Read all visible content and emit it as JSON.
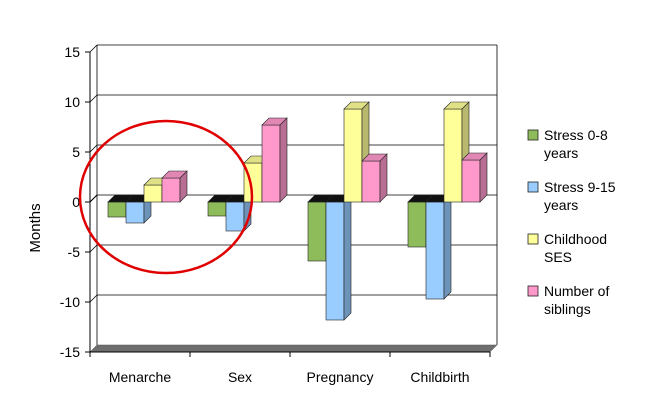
{
  "chart_data": {
    "type": "bar",
    "title": "",
    "xlabel": "",
    "ylabel": "Months",
    "ylim": [
      -15,
      15
    ],
    "yticks": [
      -15,
      -10,
      -5,
      0,
      5,
      10,
      15
    ],
    "grid": true,
    "legend_position": "right",
    "categories": [
      "Menarche",
      "Sex",
      "Pregnancy",
      "Childbirth"
    ],
    "series": [
      {
        "name": "Stress 0-8 years",
        "legend_lines": [
          "Stress 0-8",
          "years"
        ],
        "color": "#8fbc5a",
        "values": [
          -1.5,
          -1.4,
          -5.9,
          -4.5
        ]
      },
      {
        "name": "Stress 9-15 years",
        "legend_lines": [
          "Stress 9-15",
          "years"
        ],
        "color": "#99ccff",
        "values": [
          -2.1,
          -2.9,
          -11.8,
          -9.7
        ]
      },
      {
        "name": "Childhood SES",
        "legend_lines": [
          "Childhood",
          "SES"
        ],
        "color": "#ffff99",
        "values": [
          1.7,
          3.9,
          9.3,
          9.3
        ]
      },
      {
        "name": "Number of siblings",
        "legend_lines": [
          "Number of",
          "siblings"
        ],
        "color": "#ff99cc",
        "values": [
          2.4,
          7.7,
          4.1,
          4.2
        ]
      }
    ],
    "annotation": {
      "type": "circle",
      "color": "#e00000",
      "target": "Menarche and Sex"
    }
  }
}
